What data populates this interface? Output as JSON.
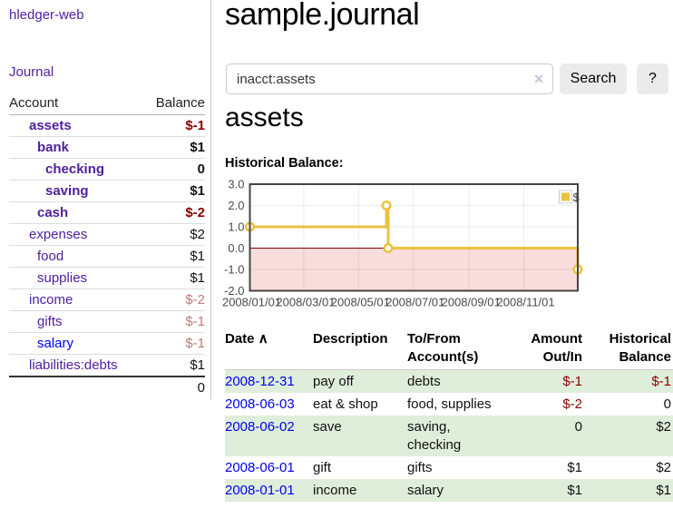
{
  "sidebar": {
    "brand": "hledger-web",
    "nav_journal": "Journal",
    "accounts": {
      "col_account": "Account",
      "col_balance": "Balance",
      "rows": [
        {
          "name": "assets",
          "indent": 1,
          "in_account": true,
          "balance": "$-1",
          "neg": "strong"
        },
        {
          "name": "bank",
          "indent": 2,
          "in_account": true,
          "balance": "$1",
          "neg": "none"
        },
        {
          "name": "checking",
          "indent": 3,
          "in_account": true,
          "balance": "0",
          "neg": "none"
        },
        {
          "name": "saving",
          "indent": 3,
          "in_account": true,
          "balance": "$1",
          "neg": "none"
        },
        {
          "name": "cash",
          "indent": 2,
          "in_account": true,
          "balance": "$-2",
          "neg": "strong"
        },
        {
          "name": "expenses",
          "indent": 1,
          "in_account": false,
          "balance": "$2",
          "neg": "none"
        },
        {
          "name": "food",
          "indent": 2,
          "in_account": false,
          "balance": "$1",
          "neg": "none"
        },
        {
          "name": "supplies",
          "indent": 2,
          "in_account": false,
          "balance": "$1",
          "neg": "none"
        },
        {
          "name": "income",
          "indent": 1,
          "in_account": false,
          "balance": "$-2",
          "neg": "soft"
        },
        {
          "name": "gifts",
          "indent": 2,
          "in_account": false,
          "balance": "$-1",
          "neg": "soft"
        },
        {
          "name": "salary",
          "indent": 2,
          "in_account": false,
          "balance": "$-1",
          "neg": "soft",
          "unvisited": true
        },
        {
          "name": "liabilities:debts",
          "indent": 1,
          "in_account": false,
          "balance": "$1",
          "neg": "none"
        }
      ],
      "total": "0"
    }
  },
  "header": {
    "title": "sample.journal"
  },
  "search": {
    "query": "inacct:assets",
    "clear": "✕",
    "button": "Search",
    "help": "?"
  },
  "account_page": {
    "heading": "assets",
    "chart_title": "Historical Balance:"
  },
  "chart_data": {
    "type": "line",
    "title": "Historical Balance:",
    "x_unit": "days since 2008-01-01",
    "xlim": [
      0,
      365
    ],
    "ylim": [
      -2,
      3
    ],
    "grid": true,
    "legend_position": "top-right",
    "zero_line_color": "#8b0000",
    "negative_region_fill": "#f9dcdc",
    "series": [
      {
        "name": "$",
        "color": "#edc240",
        "step": true,
        "points": [
          {
            "date": "2008-01-01",
            "x": 0,
            "y": 1
          },
          {
            "date": "2008-06-01",
            "x": 152,
            "y": 2
          },
          {
            "date": "2008-06-03",
            "x": 154,
            "y": 0
          },
          {
            "date": "2008-12-31",
            "x": 365,
            "y": -1
          }
        ]
      }
    ],
    "x_ticks": [
      {
        "x": 0,
        "label": "2008/01/01"
      },
      {
        "x": 60,
        "label": "2008/03/01"
      },
      {
        "x": 121,
        "label": "2008/05/01"
      },
      {
        "x": 182,
        "label": "2008/07/01"
      },
      {
        "x": 244,
        "label": "2008/09/01"
      },
      {
        "x": 305,
        "label": "2008/11/01"
      }
    ],
    "y_ticks": [
      {
        "y": 3,
        "label": "3.0"
      },
      {
        "y": 2,
        "label": "2.0"
      },
      {
        "y": 1,
        "label": "1.0"
      },
      {
        "y": 0,
        "label": "0.0"
      },
      {
        "y": -1,
        "label": "-1.0"
      },
      {
        "y": -2,
        "label": "-2.0"
      }
    ]
  },
  "register": {
    "columns": [
      "Date",
      "Description",
      "To/From Account(s)",
      "Amount Out/In",
      "Historical Balance"
    ],
    "sort_indicator": "∧",
    "rows": [
      {
        "date": "2008-12-31",
        "description": "pay off",
        "accounts": "debts",
        "amount": "$-1",
        "amount_negative": true,
        "balance": "$-1",
        "balance_negative": true
      },
      {
        "date": "2008-06-03",
        "description": "eat & shop",
        "accounts": "food, supplies",
        "amount": "$-2",
        "amount_negative": true,
        "balance": "0",
        "balance_negative": false
      },
      {
        "date": "2008-06-02",
        "description": "save",
        "accounts": "saving, checking",
        "amount": "0",
        "amount_negative": false,
        "balance": "$2",
        "balance_negative": false
      },
      {
        "date": "2008-06-01",
        "description": "gift",
        "accounts": "gifts",
        "amount": "$1",
        "amount_negative": false,
        "balance": "$2",
        "balance_negative": false
      },
      {
        "date": "2008-01-01",
        "description": "income",
        "accounts": "salary",
        "amount": "$1",
        "amount_negative": false,
        "balance": "$1",
        "balance_negative": false
      }
    ]
  },
  "colors": {
    "link_purple": "#50209f",
    "link_blue": "#0000ee",
    "negative_strong": "#8b0000",
    "negative_soft": "#bd7b7b",
    "row_stripe_green": "#dfeeda",
    "chart_line_gold": "#edc240",
    "chart_zero_line": "#8b0000",
    "chart_negative_fill": "#f9dcdc"
  }
}
